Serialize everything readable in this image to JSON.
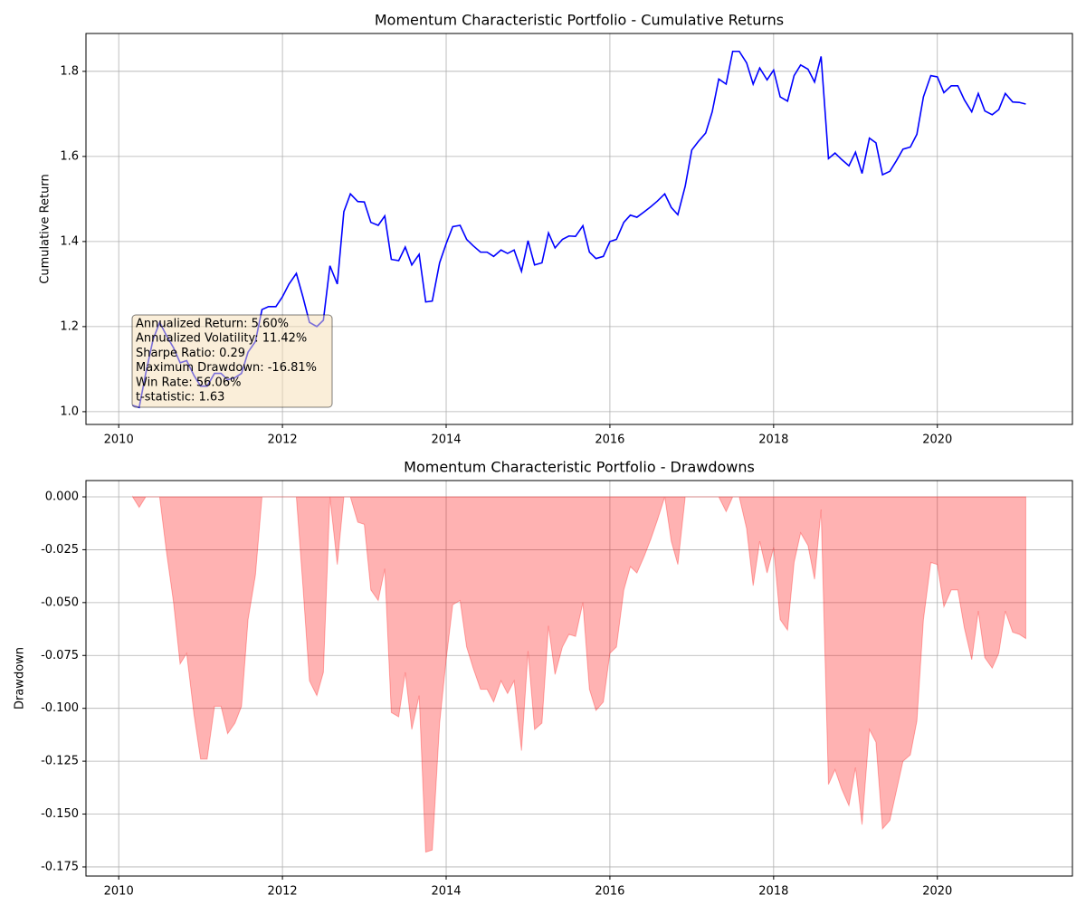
{
  "chart_data": [
    {
      "type": "line",
      "title": "Momentum Characteristic Portfolio - Cumulative Returns",
      "ylabel": "Cumulative Return",
      "x": [
        2010.17,
        2010.25,
        2010.33,
        2010.42,
        2010.5,
        2010.58,
        2010.67,
        2010.75,
        2010.83,
        2010.92,
        2011.0,
        2011.08,
        2011.17,
        2011.25,
        2011.33,
        2011.42,
        2011.5,
        2011.58,
        2011.67,
        2011.75,
        2011.83,
        2011.92,
        2012.0,
        2012.08,
        2012.17,
        2012.25,
        2012.33,
        2012.42,
        2012.5,
        2012.58,
        2012.67,
        2012.75,
        2012.83,
        2012.92,
        2013.0,
        2013.08,
        2013.17,
        2013.25,
        2013.33,
        2013.42,
        2013.5,
        2013.58,
        2013.67,
        2013.75,
        2013.83,
        2013.92,
        2014.0,
        2014.08,
        2014.17,
        2014.25,
        2014.33,
        2014.42,
        2014.5,
        2014.58,
        2014.67,
        2014.75,
        2014.83,
        2014.92,
        2015.0,
        2015.08,
        2015.17,
        2015.25,
        2015.33,
        2015.42,
        2015.5,
        2015.58,
        2015.67,
        2015.75,
        2015.83,
        2015.92,
        2016.0,
        2016.08,
        2016.17,
        2016.25,
        2016.33,
        2016.42,
        2016.5,
        2016.58,
        2016.67,
        2016.75,
        2016.83,
        2016.92,
        2017.0,
        2017.08,
        2017.17,
        2017.25,
        2017.33,
        2017.42,
        2017.5,
        2017.58,
        2017.67,
        2017.75,
        2017.83,
        2017.92,
        2018.0,
        2018.08,
        2018.17,
        2018.25,
        2018.33,
        2018.42,
        2018.5,
        2018.58,
        2018.67,
        2018.75,
        2018.83,
        2018.92,
        2019.0,
        2019.08,
        2019.17,
        2019.25,
        2019.33,
        2019.42,
        2019.5,
        2019.58,
        2019.67,
        2019.75,
        2019.83,
        2019.92,
        2020.0,
        2020.08,
        2020.17,
        2020.25,
        2020.33,
        2020.42,
        2020.5,
        2020.58,
        2020.67,
        2020.75,
        2020.83,
        2020.92,
        2021.0,
        2021.08
      ],
      "series": [
        {
          "color": "#0000ff",
          "values": [
            1.015,
            1.01,
            1.09,
            1.17,
            1.21,
            1.18,
            1.15,
            1.115,
            1.12,
            1.085,
            1.06,
            1.06,
            1.09,
            1.09,
            1.075,
            1.08,
            1.09,
            1.14,
            1.165,
            1.24,
            1.247,
            1.247,
            1.27,
            1.3,
            1.325,
            1.27,
            1.21,
            1.2,
            1.215,
            1.343,
            1.3,
            1.47,
            1.512,
            1.494,
            1.493,
            1.445,
            1.438,
            1.46,
            1.358,
            1.355,
            1.387,
            1.345,
            1.37,
            1.258,
            1.26,
            1.35,
            1.395,
            1.435,
            1.438,
            1.405,
            1.39,
            1.375,
            1.375,
            1.365,
            1.38,
            1.372,
            1.38,
            1.33,
            1.402,
            1.345,
            1.35,
            1.42,
            1.385,
            1.405,
            1.413,
            1.412,
            1.437,
            1.375,
            1.36,
            1.365,
            1.4,
            1.405,
            1.445,
            1.462,
            1.457,
            1.47,
            1.482,
            1.495,
            1.512,
            1.48,
            1.463,
            1.53,
            1.615,
            1.635,
            1.655,
            1.705,
            1.782,
            1.77,
            1.847,
            1.847,
            1.82,
            1.77,
            1.808,
            1.78,
            1.803,
            1.74,
            1.73,
            1.79,
            1.815,
            1.805,
            1.775,
            1.835,
            1.595,
            1.608,
            1.593,
            1.578,
            1.61,
            1.56,
            1.643,
            1.632,
            1.557,
            1.565,
            1.59,
            1.617,
            1.622,
            1.652,
            1.74,
            1.79,
            1.787,
            1.75,
            1.766,
            1.766,
            1.733,
            1.705,
            1.748,
            1.707,
            1.698,
            1.71,
            1.748,
            1.728,
            1.727,
            1.723
          ]
        }
      ],
      "xlim": [
        2009.6,
        2021.65
      ],
      "xticks": [
        2010,
        2012,
        2014,
        2016,
        2018,
        2020
      ],
      "ylim": [
        0.97,
        1.889
      ],
      "yticks": [
        {
          "value": 1,
          "label": "1.0"
        },
        1.2,
        1.4,
        1.6,
        1.8
      ],
      "grid": true,
      "annotation": [
        "Annualized Return: 5.60%",
        "Annualized Volatility: 11.42%",
        "Sharpe Ratio: 0.29",
        "Maximum Drawdown: -16.81%",
        "Win Rate: 56.06%",
        "t-statistic: 1.63"
      ]
    },
    {
      "type": "area",
      "title": "Momentum Characteristic Portfolio - Drawdowns",
      "ylabel": "Drawdown",
      "x": [
        2010.17,
        2010.25,
        2010.33,
        2010.42,
        2010.5,
        2010.58,
        2010.67,
        2010.75,
        2010.83,
        2010.92,
        2011.0,
        2011.08,
        2011.17,
        2011.25,
        2011.33,
        2011.42,
        2011.5,
        2011.58,
        2011.67,
        2011.75,
        2011.83,
        2011.92,
        2012.0,
        2012.08,
        2012.17,
        2012.25,
        2012.33,
        2012.42,
        2012.5,
        2012.58,
        2012.67,
        2012.75,
        2012.83,
        2012.92,
        2013.0,
        2013.08,
        2013.17,
        2013.25,
        2013.33,
        2013.42,
        2013.5,
        2013.58,
        2013.67,
        2013.75,
        2013.83,
        2013.92,
        2014.0,
        2014.08,
        2014.17,
        2014.25,
        2014.33,
        2014.42,
        2014.5,
        2014.58,
        2014.67,
        2014.75,
        2014.83,
        2014.92,
        2015.0,
        2015.08,
        2015.17,
        2015.25,
        2015.33,
        2015.42,
        2015.5,
        2015.58,
        2015.67,
        2015.75,
        2015.83,
        2015.92,
        2016.0,
        2016.08,
        2016.17,
        2016.25,
        2016.33,
        2016.42,
        2016.5,
        2016.58,
        2016.67,
        2016.75,
        2016.83,
        2016.92,
        2017.0,
        2017.08,
        2017.17,
        2017.25,
        2017.33,
        2017.42,
        2017.5,
        2017.58,
        2017.67,
        2017.75,
        2017.83,
        2017.92,
        2018.0,
        2018.08,
        2018.17,
        2018.25,
        2018.33,
        2018.42,
        2018.5,
        2018.58,
        2018.67,
        2018.75,
        2018.83,
        2018.92,
        2019.0,
        2019.08,
        2019.17,
        2019.25,
        2019.33,
        2019.42,
        2019.5,
        2019.58,
        2019.67,
        2019.75,
        2019.83,
        2019.92,
        2020.0,
        2020.08,
        2020.17,
        2020.25,
        2020.33,
        2020.42,
        2020.5,
        2020.58,
        2020.67,
        2020.75,
        2020.83,
        2020.92,
        2021.0,
        2021.08
      ],
      "series": [
        {
          "color": "#ff0000",
          "values": [
            0,
            -0.005,
            0,
            0,
            0,
            -0.025,
            -0.05,
            -0.079,
            -0.074,
            -0.103,
            -0.124,
            -0.124,
            -0.099,
            -0.099,
            -0.112,
            -0.107,
            -0.099,
            -0.058,
            -0.037,
            0,
            0,
            0,
            0,
            0,
            0,
            -0.042,
            -0.087,
            -0.094,
            -0.083,
            0,
            -0.032,
            0,
            0,
            -0.012,
            -0.013,
            -0.044,
            -0.049,
            -0.034,
            -0.102,
            -0.104,
            -0.083,
            -0.11,
            -0.094,
            -0.168,
            -0.167,
            -0.107,
            -0.077,
            -0.051,
            -0.049,
            -0.071,
            -0.081,
            -0.091,
            -0.091,
            -0.097,
            -0.087,
            -0.093,
            -0.087,
            -0.12,
            -0.073,
            -0.11,
            -0.107,
            -0.061,
            -0.084,
            -0.071,
            -0.065,
            -0.066,
            -0.05,
            -0.091,
            -0.101,
            -0.097,
            -0.074,
            -0.071,
            -0.044,
            -0.033,
            -0.036,
            -0.028,
            -0.02,
            -0.011,
            0,
            -0.021,
            -0.032,
            0,
            0,
            0,
            0,
            0,
            0,
            -0.007,
            0,
            0,
            -0.015,
            -0.042,
            -0.021,
            -0.036,
            -0.024,
            -0.058,
            -0.063,
            -0.031,
            -0.017,
            -0.023,
            -0.039,
            -0.006,
            -0.136,
            -0.129,
            -0.138,
            -0.146,
            -0.128,
            -0.155,
            -0.11,
            -0.116,
            -0.157,
            -0.153,
            -0.139,
            -0.125,
            -0.122,
            -0.106,
            -0.058,
            -0.031,
            -0.032,
            -0.052,
            -0.044,
            -0.044,
            -0.062,
            -0.077,
            -0.054,
            -0.076,
            -0.081,
            -0.074,
            -0.054,
            -0.064,
            -0.065,
            -0.067
          ]
        }
      ],
      "xlim": [
        2009.6,
        2021.65
      ],
      "xticks": [
        2010,
        2012,
        2014,
        2016,
        2018,
        2020
      ],
      "ylim": [
        -0.1793,
        0.0077
      ],
      "yticks": [
        {
          "value": 0,
          "label": "0.000"
        },
        {
          "value": -0.025,
          "label": "-0.025"
        },
        {
          "value": -0.05,
          "label": "-0.050"
        },
        {
          "value": -0.075,
          "label": "-0.075"
        },
        {
          "value": -0.1,
          "label": "-0.100"
        },
        {
          "value": -0.125,
          "label": "-0.125"
        },
        {
          "value": -0.15,
          "label": "-0.150"
        },
        {
          "value": -0.175,
          "label": "-0.175"
        }
      ],
      "grid": true
    }
  ]
}
